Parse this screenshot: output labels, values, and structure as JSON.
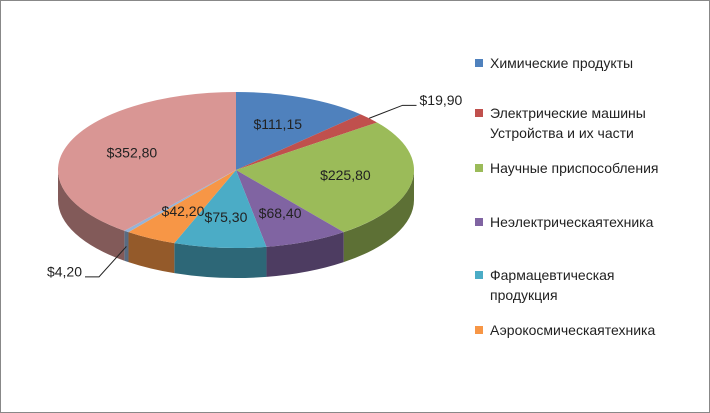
{
  "chart_data": {
    "type": "pie3d",
    "categories": [
      "Химические продукты",
      "Электрические машины\nУстройства и их части",
      "Научные приспособления",
      "Неэлектрическаятехника",
      "Фармацевтическая\nпродукция",
      "Аэрокосмическаятехника",
      null,
      null
    ],
    "values": [
      111.15,
      19.9,
      225.8,
      68.4,
      75.3,
      42.2,
      4.2,
      352.8
    ],
    "value_labels": [
      "$111,15",
      "$19,90",
      "$225,80",
      "$68,40",
      "$75,30",
      "$42,20",
      "$4,20",
      "$352,80"
    ],
    "colors": [
      "#4f81bd",
      "#c0504d",
      "#9bbb59",
      "#8064a2",
      "#4bacc6",
      "#f79646",
      "#95b3d7",
      "#d99694"
    ],
    "legend": "right"
  }
}
